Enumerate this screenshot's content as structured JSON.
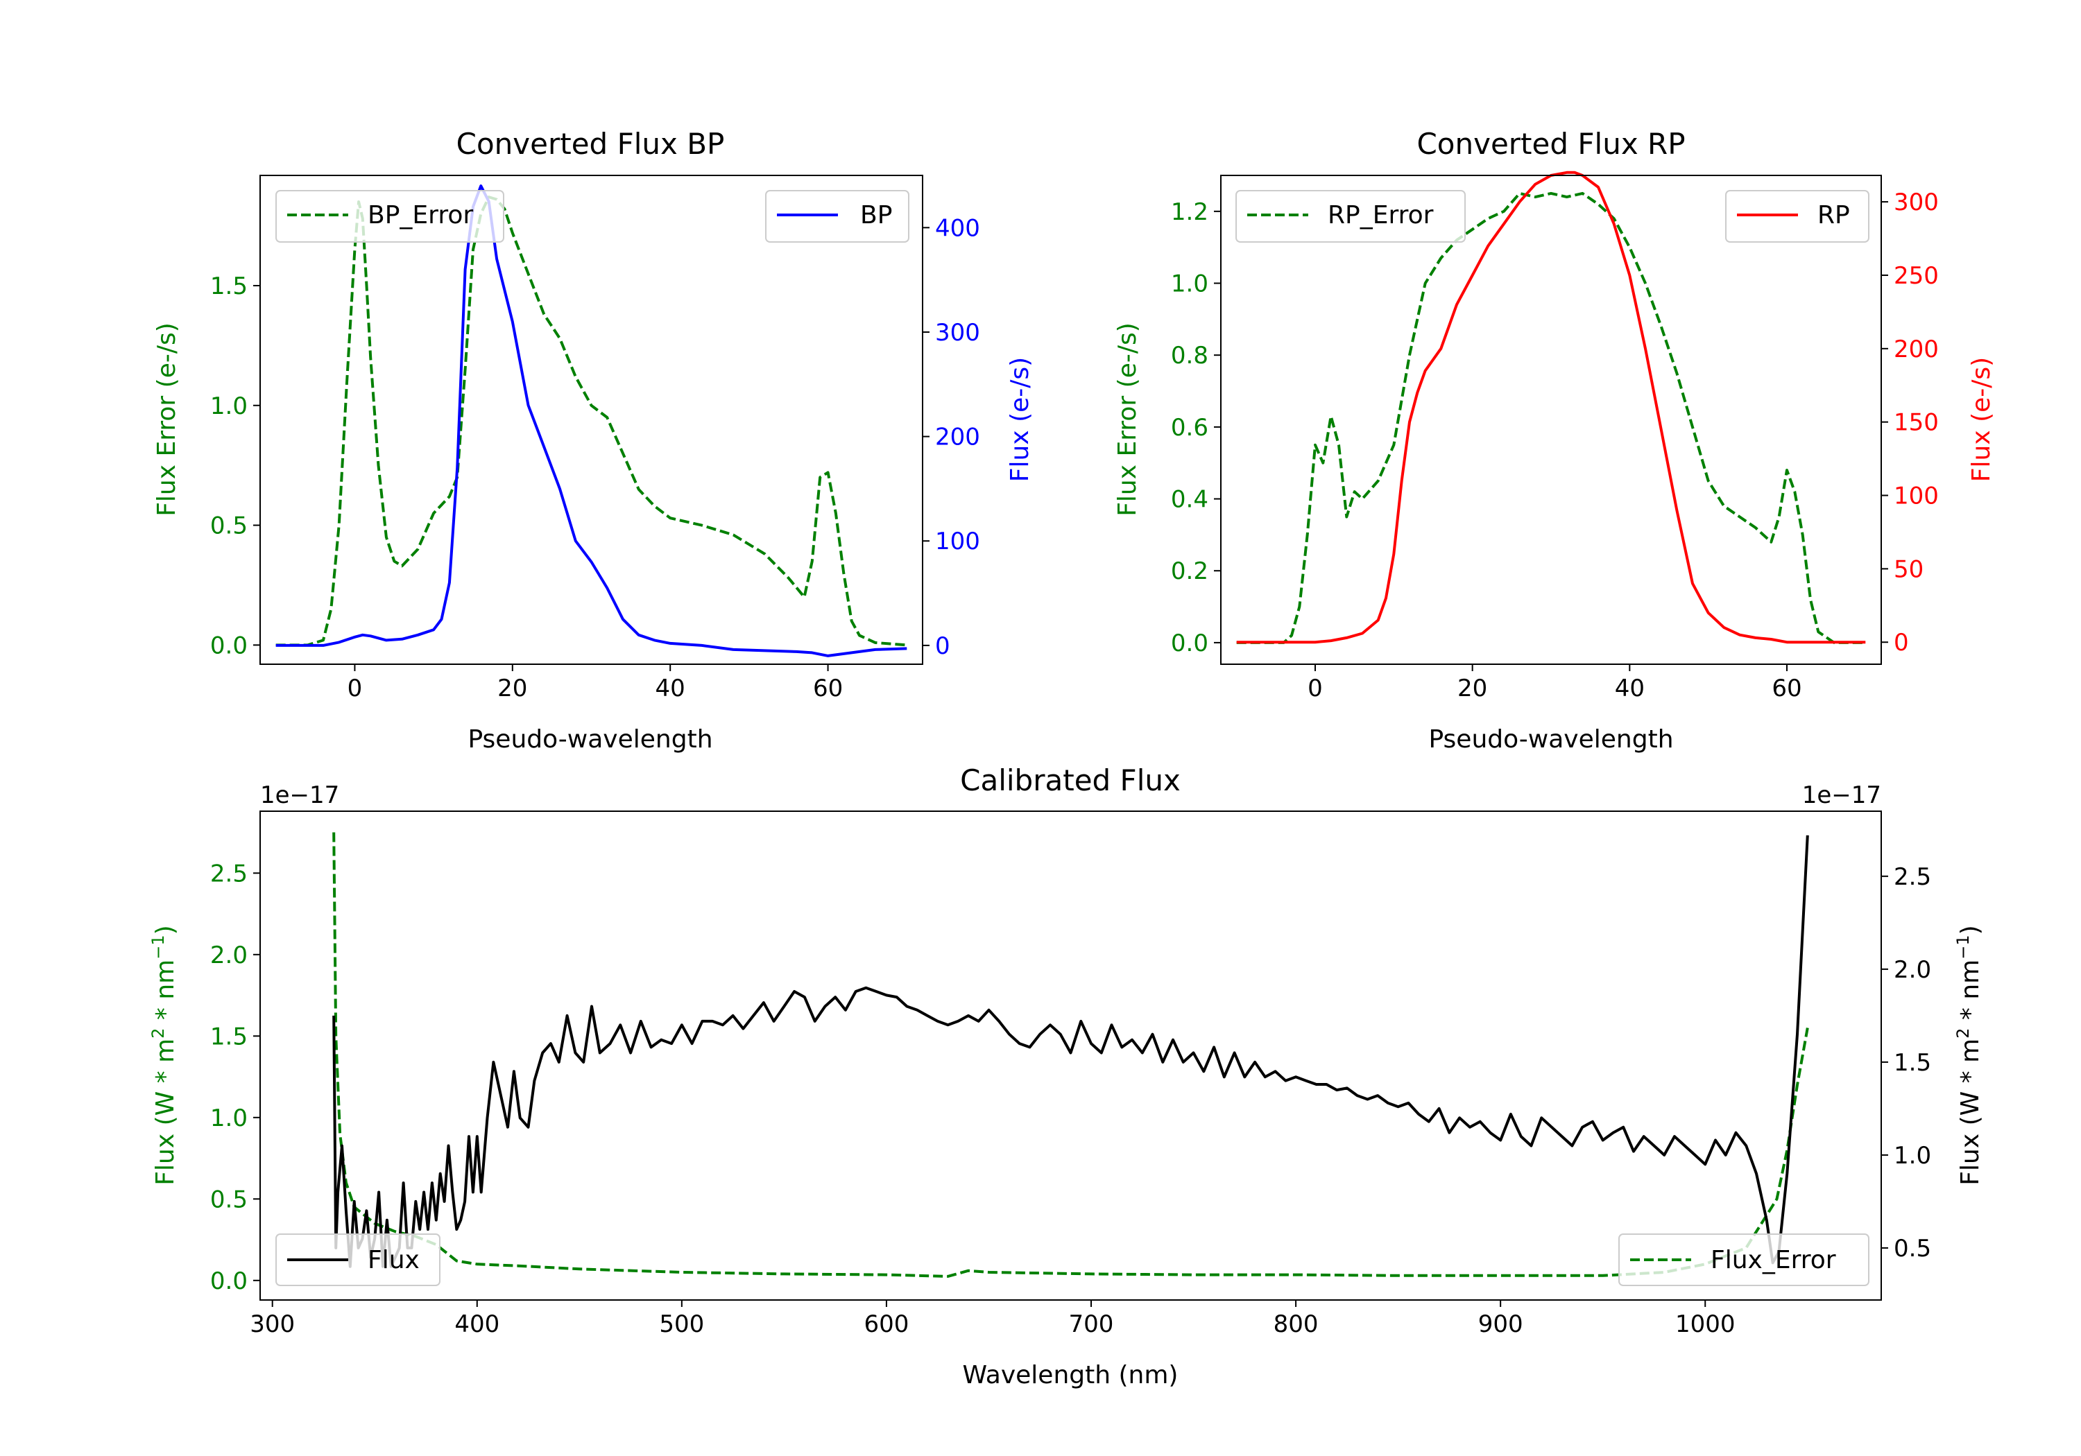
{
  "colors": {
    "bp": "#0000ff",
    "rp": "#ff0000",
    "error": "#008000",
    "flux": "#000000",
    "axis": "#000000"
  },
  "chart_data": [
    {
      "id": "bp",
      "type": "line",
      "title": "Converted Flux BP",
      "xlabel": "Pseudo-wavelength",
      "xlim": [
        -12,
        72
      ],
      "xticks": [
        0,
        20,
        40,
        60
      ],
      "left_axis": {
        "label": "Flux Error (e-/s)",
        "color": "#008000",
        "lim": [
          -0.08,
          1.96
        ],
        "ticks": [
          "0.0",
          "0.5",
          "1.0",
          "1.5"
        ]
      },
      "right_axis": {
        "label": "Flux (e-/s)",
        "color": "#0000ff",
        "lim": [
          -18,
          450
        ],
        "ticks": [
          "0",
          "100",
          "200",
          "300",
          "400"
        ]
      },
      "series": [
        {
          "name": "BP_Error",
          "axis": "left",
          "style": "dashed",
          "color": "#008000",
          "x": [
            -10,
            -6,
            -4,
            -3,
            -2,
            -1,
            0,
            0.5,
            1,
            1.5,
            2,
            3,
            4,
            5,
            6,
            8,
            10,
            12,
            13,
            14,
            15,
            16,
            17,
            18,
            19,
            20,
            22,
            24,
            26,
            28,
            30,
            32,
            34,
            36,
            38,
            40,
            44,
            48,
            52,
            55,
            57,
            58,
            59,
            60,
            61,
            62,
            63,
            64,
            66,
            70
          ],
          "y": [
            0,
            0,
            0.02,
            0.15,
            0.5,
            1.1,
            1.65,
            1.85,
            1.78,
            1.5,
            1.2,
            0.75,
            0.45,
            0.35,
            0.33,
            0.4,
            0.55,
            0.62,
            0.7,
            1.15,
            1.65,
            1.8,
            1.87,
            1.86,
            1.82,
            1.72,
            1.55,
            1.38,
            1.28,
            1.12,
            1.0,
            0.95,
            0.8,
            0.65,
            0.58,
            0.53,
            0.5,
            0.46,
            0.38,
            0.28,
            0.2,
            0.35,
            0.7,
            0.72,
            0.55,
            0.3,
            0.1,
            0.04,
            0.01,
            0
          ]
        },
        {
          "name": "BP",
          "axis": "right",
          "style": "solid",
          "color": "#0000ff",
          "x": [
            -10,
            -4,
            -2,
            0,
            1,
            2,
            4,
            6,
            8,
            10,
            11,
            12,
            13,
            14,
            15,
            16,
            17,
            18,
            20,
            22,
            24,
            26,
            28,
            30,
            32,
            34,
            36,
            38,
            40,
            44,
            48,
            52,
            56,
            58,
            60,
            62,
            64,
            66,
            70
          ],
          "y": [
            0,
            0,
            3,
            8,
            10,
            9,
            5,
            6,
            10,
            15,
            25,
            60,
            170,
            360,
            420,
            440,
            425,
            370,
            310,
            230,
            190,
            150,
            100,
            80,
            55,
            25,
            10,
            5,
            2,
            0,
            -4,
            -5,
            -6,
            -7,
            -10,
            -8,
            -6,
            -4,
            -3
          ]
        }
      ],
      "legend": [
        {
          "label": "BP_Error",
          "position": "top-left"
        },
        {
          "label": "BP",
          "position": "top-right"
        }
      ]
    },
    {
      "id": "rp",
      "type": "line",
      "title": "Converted Flux RP",
      "xlabel": "Pseudo-wavelength",
      "xlim": [
        -12,
        72
      ],
      "xticks": [
        0,
        20,
        40,
        60
      ],
      "left_axis": {
        "label": "Flux Error (e-/s)",
        "color": "#008000",
        "lim": [
          -0.06,
          1.3
        ],
        "ticks": [
          "0.0",
          "0.2",
          "0.4",
          "0.6",
          "0.8",
          "1.0",
          "1.2"
        ]
      },
      "right_axis": {
        "label": "Flux (e-/s)",
        "color": "#ff0000",
        "lim": [
          -15,
          318
        ],
        "ticks": [
          "0",
          "50",
          "100",
          "150",
          "200",
          "250",
          "300"
        ]
      },
      "series": [
        {
          "name": "RP_Error",
          "axis": "left",
          "style": "dashed",
          "color": "#008000",
          "x": [
            -10,
            -4,
            -3,
            -2,
            -1,
            0,
            1,
            2,
            3,
            4,
            5,
            6,
            8,
            10,
            12,
            14,
            16,
            18,
            20,
            22,
            24,
            26,
            28,
            30,
            32,
            34,
            36,
            38,
            40,
            42,
            44,
            46,
            48,
            50,
            52,
            54,
            56,
            58,
            59,
            60,
            61,
            62,
            63,
            64,
            66,
            70
          ],
          "y": [
            0,
            0,
            0.02,
            0.1,
            0.3,
            0.55,
            0.5,
            0.63,
            0.55,
            0.35,
            0.42,
            0.4,
            0.45,
            0.55,
            0.8,
            1.0,
            1.07,
            1.12,
            1.15,
            1.18,
            1.2,
            1.25,
            1.24,
            1.25,
            1.24,
            1.25,
            1.22,
            1.18,
            1.1,
            1.0,
            0.88,
            0.75,
            0.6,
            0.45,
            0.38,
            0.35,
            0.32,
            0.28,
            0.35,
            0.48,
            0.42,
            0.3,
            0.12,
            0.03,
            0,
            0
          ]
        },
        {
          "name": "RP",
          "axis": "right",
          "style": "solid",
          "color": "#ff0000",
          "x": [
            -10,
            -4,
            0,
            2,
            4,
            6,
            8,
            9,
            10,
            11,
            12,
            13,
            14,
            16,
            18,
            20,
            22,
            24,
            26,
            28,
            30,
            32,
            33,
            34,
            36,
            38,
            40,
            42,
            44,
            46,
            48,
            50,
            52,
            54,
            56,
            58,
            60,
            64,
            70
          ],
          "y": [
            0,
            0,
            0,
            1,
            3,
            6,
            15,
            30,
            60,
            110,
            150,
            170,
            185,
            200,
            230,
            250,
            270,
            285,
            300,
            312,
            318,
            320,
            320,
            318,
            310,
            285,
            250,
            200,
            145,
            90,
            40,
            20,
            10,
            5,
            3,
            2,
            0,
            0,
            0
          ]
        }
      ],
      "legend": [
        {
          "label": "RP_Error",
          "position": "top-left"
        },
        {
          "label": "RP",
          "position": "top-right"
        }
      ]
    },
    {
      "id": "cal",
      "type": "line",
      "title": "Calibrated Flux",
      "xlabel": "Wavelength (nm)",
      "xlim": [
        294,
        1086
      ],
      "xticks": [
        300,
        400,
        500,
        600,
        700,
        800,
        900,
        1000
      ],
      "left_axis": {
        "label": "Flux (W * m$^2$ * nm$^{-1}$)",
        "color": "#008000",
        "offset": "1e−17",
        "lim": [
          -0.12,
          2.88
        ],
        "ticks": [
          "0.0",
          "0.5",
          "1.0",
          "1.5",
          "2.0",
          "2.5"
        ]
      },
      "right_axis": {
        "label": "Flux (W * m$^2$ * nm$^{-1}$)",
        "color": "#000000",
        "offset": "1e−17",
        "lim": [
          0.22,
          2.85
        ],
        "ticks": [
          "0.5",
          "1.0",
          "1.5",
          "2.0",
          "2.5"
        ]
      },
      "series": [
        {
          "name": "Flux_Error",
          "axis": "left",
          "style": "dashed",
          "color": "#008000",
          "x": [
            330,
            331,
            333,
            336,
            340,
            350,
            360,
            370,
            380,
            390,
            400,
            420,
            450,
            500,
            550,
            600,
            630,
            640,
            650,
            700,
            750,
            800,
            850,
            900,
            950,
            980,
            1000,
            1010,
            1020,
            1025,
            1030,
            1035,
            1040,
            1045,
            1050
          ],
          "y": [
            2.75,
            1.5,
            0.9,
            0.6,
            0.45,
            0.35,
            0.3,
            0.27,
            0.22,
            0.12,
            0.1,
            0.09,
            0.07,
            0.05,
            0.04,
            0.035,
            0.025,
            0.06,
            0.05,
            0.04,
            0.035,
            0.035,
            0.03,
            0.03,
            0.03,
            0.05,
            0.1,
            0.15,
            0.2,
            0.3,
            0.4,
            0.5,
            0.8,
            1.2,
            1.55
          ]
        },
        {
          "name": "Flux",
          "axis": "right",
          "style": "solid",
          "color": "#000000",
          "x": [
            330,
            331,
            332,
            334,
            336,
            338,
            340,
            342,
            344,
            346,
            348,
            350,
            352,
            354,
            356,
            358,
            360,
            362,
            364,
            366,
            368,
            370,
            372,
            374,
            376,
            378,
            380,
            382,
            384,
            386,
            388,
            390,
            392,
            394,
            396,
            398,
            400,
            402,
            405,
            408,
            412,
            415,
            418,
            421,
            425,
            428,
            432,
            436,
            440,
            444,
            448,
            452,
            456,
            460,
            465,
            470,
            475,
            480,
            485,
            490,
            495,
            500,
            505,
            510,
            515,
            520,
            525,
            530,
            535,
            540,
            545,
            550,
            555,
            560,
            565,
            570,
            575,
            580,
            585,
            590,
            595,
            600,
            605,
            610,
            615,
            620,
            625,
            630,
            635,
            640,
            645,
            650,
            655,
            660,
            665,
            670,
            675,
            680,
            685,
            690,
            695,
            700,
            705,
            710,
            715,
            720,
            725,
            730,
            735,
            740,
            745,
            750,
            755,
            760,
            765,
            770,
            775,
            780,
            785,
            790,
            795,
            800,
            805,
            810,
            815,
            820,
            825,
            830,
            835,
            840,
            845,
            850,
            855,
            860,
            865,
            870,
            875,
            880,
            885,
            890,
            895,
            900,
            905,
            910,
            915,
            920,
            925,
            930,
            935,
            940,
            945,
            950,
            955,
            960,
            965,
            970,
            975,
            980,
            985,
            990,
            995,
            1000,
            1005,
            1010,
            1015,
            1020,
            1025,
            1030,
            1033,
            1036,
            1040,
            1045,
            1050
          ],
          "y": [
            1.75,
            0.5,
            0.8,
            1.05,
            0.7,
            0.4,
            0.75,
            0.5,
            0.55,
            0.7,
            0.45,
            0.55,
            0.8,
            0.4,
            0.65,
            0.4,
            0.45,
            0.5,
            0.85,
            0.5,
            0.5,
            0.75,
            0.6,
            0.8,
            0.6,
            0.85,
            0.65,
            0.9,
            0.75,
            1.05,
            0.8,
            0.6,
            0.65,
            0.75,
            1.1,
            0.8,
            1.1,
            0.8,
            1.2,
            1.5,
            1.3,
            1.15,
            1.45,
            1.2,
            1.15,
            1.4,
            1.55,
            1.6,
            1.5,
            1.75,
            1.55,
            1.5,
            1.8,
            1.55,
            1.6,
            1.7,
            1.55,
            1.72,
            1.58,
            1.62,
            1.6,
            1.7,
            1.6,
            1.72,
            1.72,
            1.7,
            1.75,
            1.68,
            1.75,
            1.82,
            1.72,
            1.8,
            1.88,
            1.85,
            1.72,
            1.8,
            1.85,
            1.78,
            1.88,
            1.9,
            1.88,
            1.86,
            1.85,
            1.8,
            1.78,
            1.75,
            1.72,
            1.7,
            1.72,
            1.75,
            1.72,
            1.78,
            1.72,
            1.65,
            1.6,
            1.58,
            1.65,
            1.7,
            1.65,
            1.55,
            1.72,
            1.6,
            1.55,
            1.7,
            1.58,
            1.62,
            1.55,
            1.65,
            1.5,
            1.62,
            1.5,
            1.55,
            1.45,
            1.58,
            1.42,
            1.55,
            1.42,
            1.5,
            1.42,
            1.45,
            1.4,
            1.42,
            1.4,
            1.38,
            1.38,
            1.35,
            1.36,
            1.32,
            1.3,
            1.32,
            1.28,
            1.26,
            1.28,
            1.22,
            1.18,
            1.25,
            1.12,
            1.2,
            1.15,
            1.18,
            1.12,
            1.08,
            1.22,
            1.1,
            1.05,
            1.2,
            1.15,
            1.1,
            1.05,
            1.15,
            1.18,
            1.08,
            1.12,
            1.15,
            1.02,
            1.1,
            1.05,
            1.0,
            1.1,
            1.05,
            1.0,
            0.95,
            1.08,
            1.0,
            1.12,
            1.05,
            0.9,
            0.65,
            0.42,
            0.48,
            0.9,
            1.65,
            2.72
          ]
        }
      ],
      "legend": [
        {
          "label": "Flux",
          "position": "bottom-left"
        },
        {
          "label": "Flux_Error",
          "position": "bottom-right"
        }
      ]
    }
  ]
}
